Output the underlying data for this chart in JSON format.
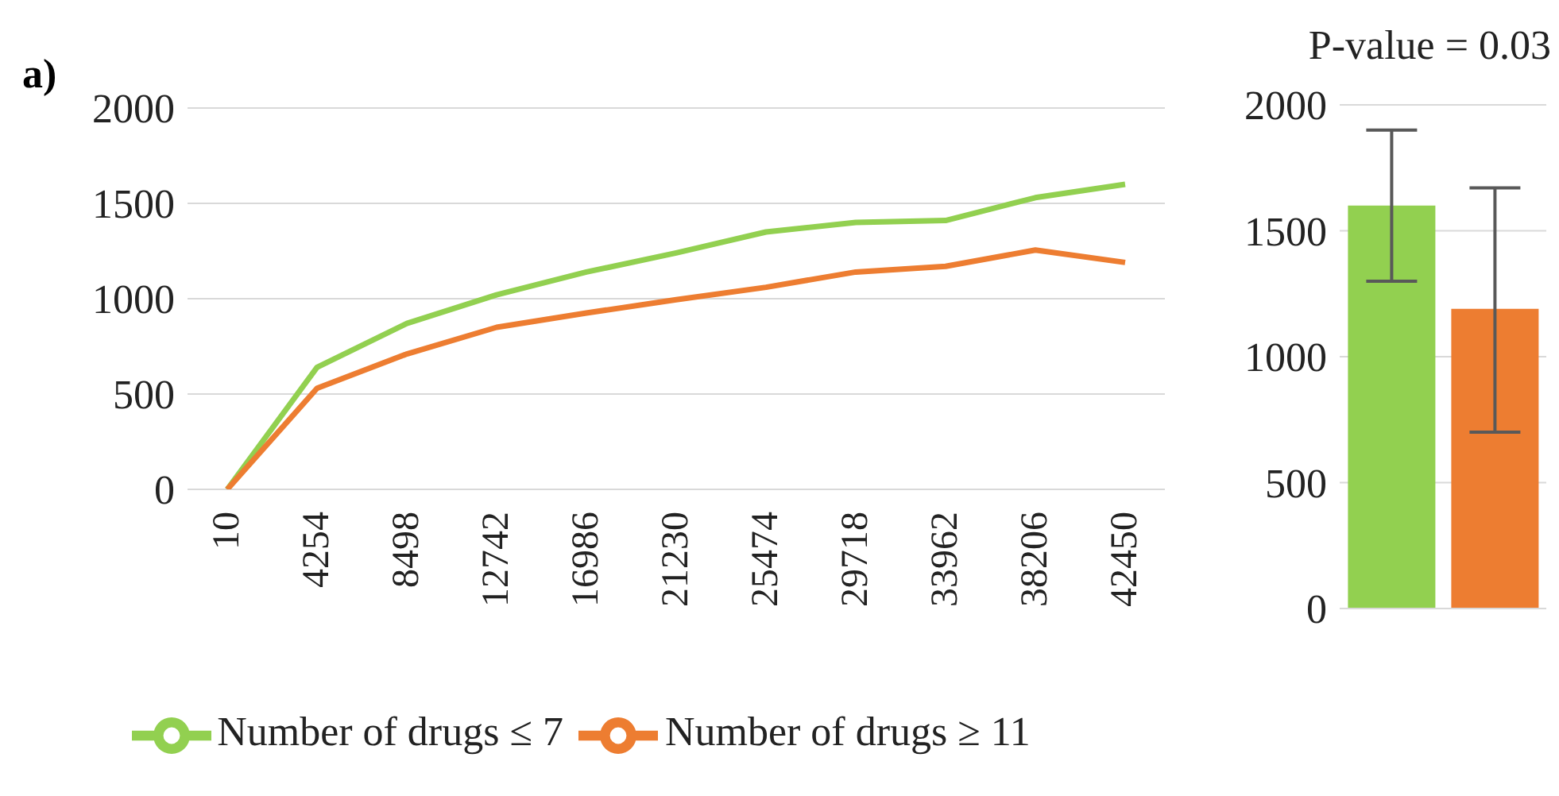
{
  "chart_data": [
    {
      "type": "line",
      "title": "a)",
      "categories": [
        "10",
        "4254",
        "8498",
        "12742",
        "16986",
        "21230",
        "25474",
        "29718",
        "33962",
        "38206",
        "42450"
      ],
      "series": [
        {
          "name": "Number of drugs ≤ 7",
          "color": "#92d050",
          "values": [
            0,
            640,
            870,
            1020,
            1140,
            1240,
            1350,
            1400,
            1410,
            1530,
            1600
          ]
        },
        {
          "name": "Number of drugs ≥ 11",
          "color": "#ed7d31",
          "values": [
            0,
            530,
            710,
            850,
            925,
            995,
            1060,
            1140,
            1170,
            1255,
            1190
          ]
        }
      ],
      "ylim": [
        0,
        2000
      ],
      "yticks": [
        0,
        500,
        1000,
        1500,
        2000
      ],
      "grid": "y",
      "legend": "bottom",
      "marker": "none",
      "line_style": "solid"
    },
    {
      "type": "bar",
      "title": "P-value = 0.03",
      "categories": [
        null,
        null
      ],
      "values": [
        1600,
        1190
      ],
      "colors": [
        "#92d050",
        "#ed7d31"
      ],
      "errors": [
        [
          1300,
          1900
        ],
        [
          700,
          1670
        ]
      ],
      "ylim": [
        0,
        2000
      ],
      "yticks": [
        0,
        500,
        1000,
        1500,
        2000
      ],
      "grid": "y"
    }
  ]
}
